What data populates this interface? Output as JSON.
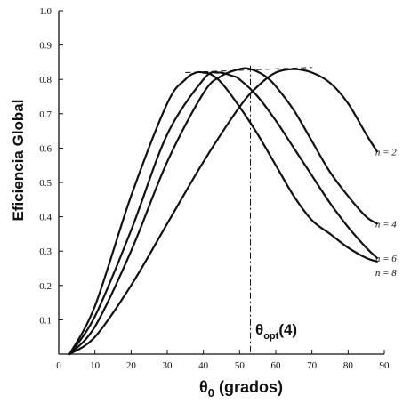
{
  "chart_data": {
    "type": "line",
    "xlabel_symbol": "θ",
    "xlabel_subscript": "0",
    "xlabel_rest": " (grados)",
    "ylabel": "Eficiencia Global",
    "xlim": [
      0,
      90
    ],
    "ylim": [
      0,
      1.0
    ],
    "x_ticks": [
      "0",
      "10",
      "20",
      "30",
      "40",
      "50",
      "60",
      "70",
      "80",
      "90"
    ],
    "y_ticks": [
      "0.1",
      "0.2",
      "0.3",
      "0.4",
      "0.5",
      "0.6",
      "0.7",
      "0.8",
      "0.9",
      "1.0"
    ],
    "grid": false,
    "series": [
      {
        "name": "n = 2",
        "x": [
          3,
          10,
          20,
          30,
          40,
          50,
          55,
          60,
          65,
          70,
          75,
          80,
          85,
          88
        ],
        "y": [
          0.0,
          0.05,
          0.2,
          0.38,
          0.56,
          0.72,
          0.78,
          0.82,
          0.83,
          0.82,
          0.79,
          0.73,
          0.64,
          0.59
        ]
      },
      {
        "name": "n = 4",
        "x": [
          3,
          10,
          20,
          30,
          40,
          45,
          50,
          53,
          57,
          60,
          65,
          70,
          75,
          80,
          85,
          88
        ],
        "y": [
          0.0,
          0.08,
          0.3,
          0.56,
          0.76,
          0.81,
          0.83,
          0.83,
          0.81,
          0.78,
          0.71,
          0.62,
          0.53,
          0.46,
          0.4,
          0.38
        ]
      },
      {
        "name": "n = 6",
        "x": [
          3,
          10,
          20,
          30,
          40,
          44,
          48,
          50,
          55,
          60,
          65,
          70,
          75,
          80,
          85,
          88
        ],
        "y": [
          0.0,
          0.11,
          0.36,
          0.64,
          0.8,
          0.82,
          0.81,
          0.8,
          0.75,
          0.68,
          0.6,
          0.52,
          0.44,
          0.37,
          0.31,
          0.28
        ]
      },
      {
        "name": "n = 8",
        "x": [
          3,
          10,
          20,
          30,
          35,
          38,
          40,
          42,
          45,
          50,
          55,
          60,
          65,
          70,
          75,
          80,
          85,
          88
        ],
        "y": [
          0.0,
          0.14,
          0.46,
          0.73,
          0.8,
          0.82,
          0.82,
          0.815,
          0.79,
          0.72,
          0.64,
          0.55,
          0.46,
          0.39,
          0.35,
          0.31,
          0.28,
          0.27
        ]
      }
    ],
    "envelope": {
      "x": [
        35,
        70
      ],
      "y": [
        0.82,
        0.835
      ]
    },
    "optimum_line": {
      "x": 53,
      "label_symbol": "θ",
      "label_subscript": "opt",
      "label_rest": "(4)"
    }
  }
}
